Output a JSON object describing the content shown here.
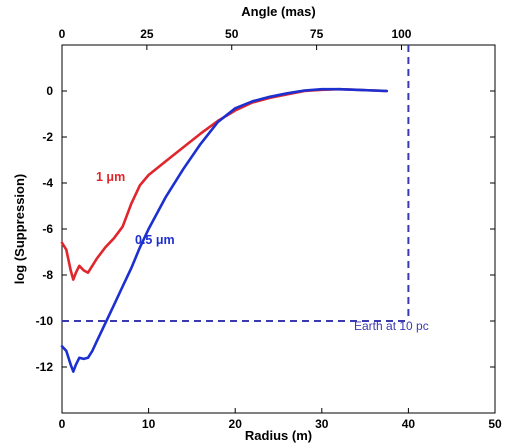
{
  "chart_data": {
    "type": "line",
    "xlabel": "Radius (m)",
    "ylabel": "log (Suppression)",
    "top_xlabel": "Angle (mas)",
    "xlim": [
      0,
      50
    ],
    "ylim": [
      -14,
      2
    ],
    "x_ticks": [
      "0",
      "10",
      "20",
      "30",
      "40",
      "50"
    ],
    "y_ticks": [
      "0",
      "-2",
      "-4",
      "-6",
      "-8",
      "-10",
      "-12"
    ],
    "top_ticks": [
      "0",
      "25",
      "50",
      "75",
      "100"
    ],
    "top_tick_radius": [
      0,
      9.8,
      19.6,
      29.4,
      39.2
    ],
    "grid": false,
    "series": [
      {
        "name": "1 μm",
        "color": "#e0262c",
        "x": [
          0,
          0.5,
          1.0,
          1.3,
          1.6,
          2.0,
          2.5,
          3.0,
          3.5,
          4.0,
          5.0,
          6.0,
          7.0,
          8.0,
          9.0,
          10.0,
          12.0,
          14.0,
          16.0,
          18.0,
          20.0,
          22.0,
          24.0,
          26.0,
          28.0,
          30.0,
          32.0,
          34.0,
          36.0,
          37.5
        ],
        "y": [
          -6.6,
          -6.9,
          -7.8,
          -8.2,
          -7.9,
          -7.6,
          -7.8,
          -7.9,
          -7.6,
          -7.3,
          -6.8,
          -6.4,
          -5.9,
          -4.9,
          -4.1,
          -3.65,
          -3.05,
          -2.45,
          -1.85,
          -1.3,
          -0.85,
          -0.5,
          -0.3,
          -0.15,
          0.0,
          0.05,
          0.08,
          0.05,
          0.02,
          0.0
        ]
      },
      {
        "name": "0.5 μm",
        "color": "#1c2fd0",
        "x": [
          0,
          0.5,
          1.0,
          1.3,
          1.6,
          2.0,
          2.5,
          3.0,
          3.5,
          4.0,
          5.0,
          6.0,
          7.0,
          8.0,
          9.0,
          10.0,
          12.0,
          14.0,
          16.0,
          18.0,
          20.0,
          22.0,
          24.0,
          26.0,
          28.0,
          30.0,
          32.0,
          34.0,
          36.0,
          37.5
        ],
        "y": [
          -11.1,
          -11.3,
          -11.9,
          -12.2,
          -11.9,
          -11.6,
          -11.65,
          -11.6,
          -11.3,
          -10.9,
          -10.1,
          -9.3,
          -8.5,
          -7.7,
          -6.8,
          -6.0,
          -4.6,
          -3.4,
          -2.3,
          -1.35,
          -0.75,
          -0.45,
          -0.25,
          -0.1,
          0.02,
          0.08,
          0.08,
          0.05,
          0.02,
          0.0
        ]
      }
    ],
    "reference": {
      "label": "Earth at 10 pc",
      "y": -10,
      "x": 40,
      "color": "#3a3ab0"
    }
  },
  "annotations": {
    "series1_label": "1 μm",
    "series2_label": "0.5 μm",
    "reference_label": "Earth at 10 pc"
  }
}
